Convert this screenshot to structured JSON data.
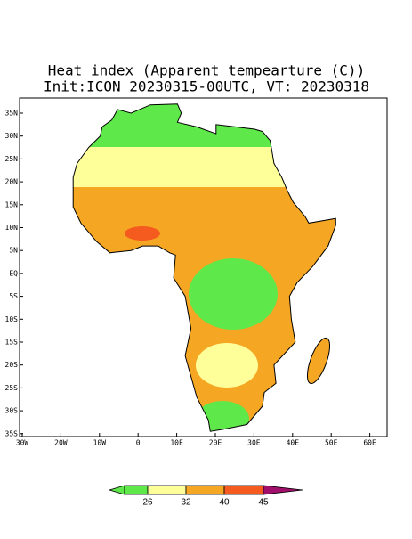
{
  "title": "Heat index (Apparent tempearture (C))",
  "subtitle": "Init:ICON 20230315-00UTC, VT: 20230318",
  "lat_labels": [
    "35N",
    "30N",
    "25N",
    "20N",
    "15N",
    "10N",
    "5N",
    "EQ",
    "5S",
    "10S",
    "15S",
    "20S",
    "25S",
    "30S",
    "35S"
  ],
  "lon_labels": [
    "30W",
    "20W",
    "10W",
    "0",
    "10E",
    "20E",
    "30E",
    "40E",
    "50E",
    "60E"
  ],
  "colorbar": {
    "colors": [
      "#5fe84a",
      "#ffff99",
      "#f5a623",
      "#f55a1e",
      "#a0106a"
    ],
    "ticks": [
      26,
      32,
      40,
      45
    ]
  }
}
